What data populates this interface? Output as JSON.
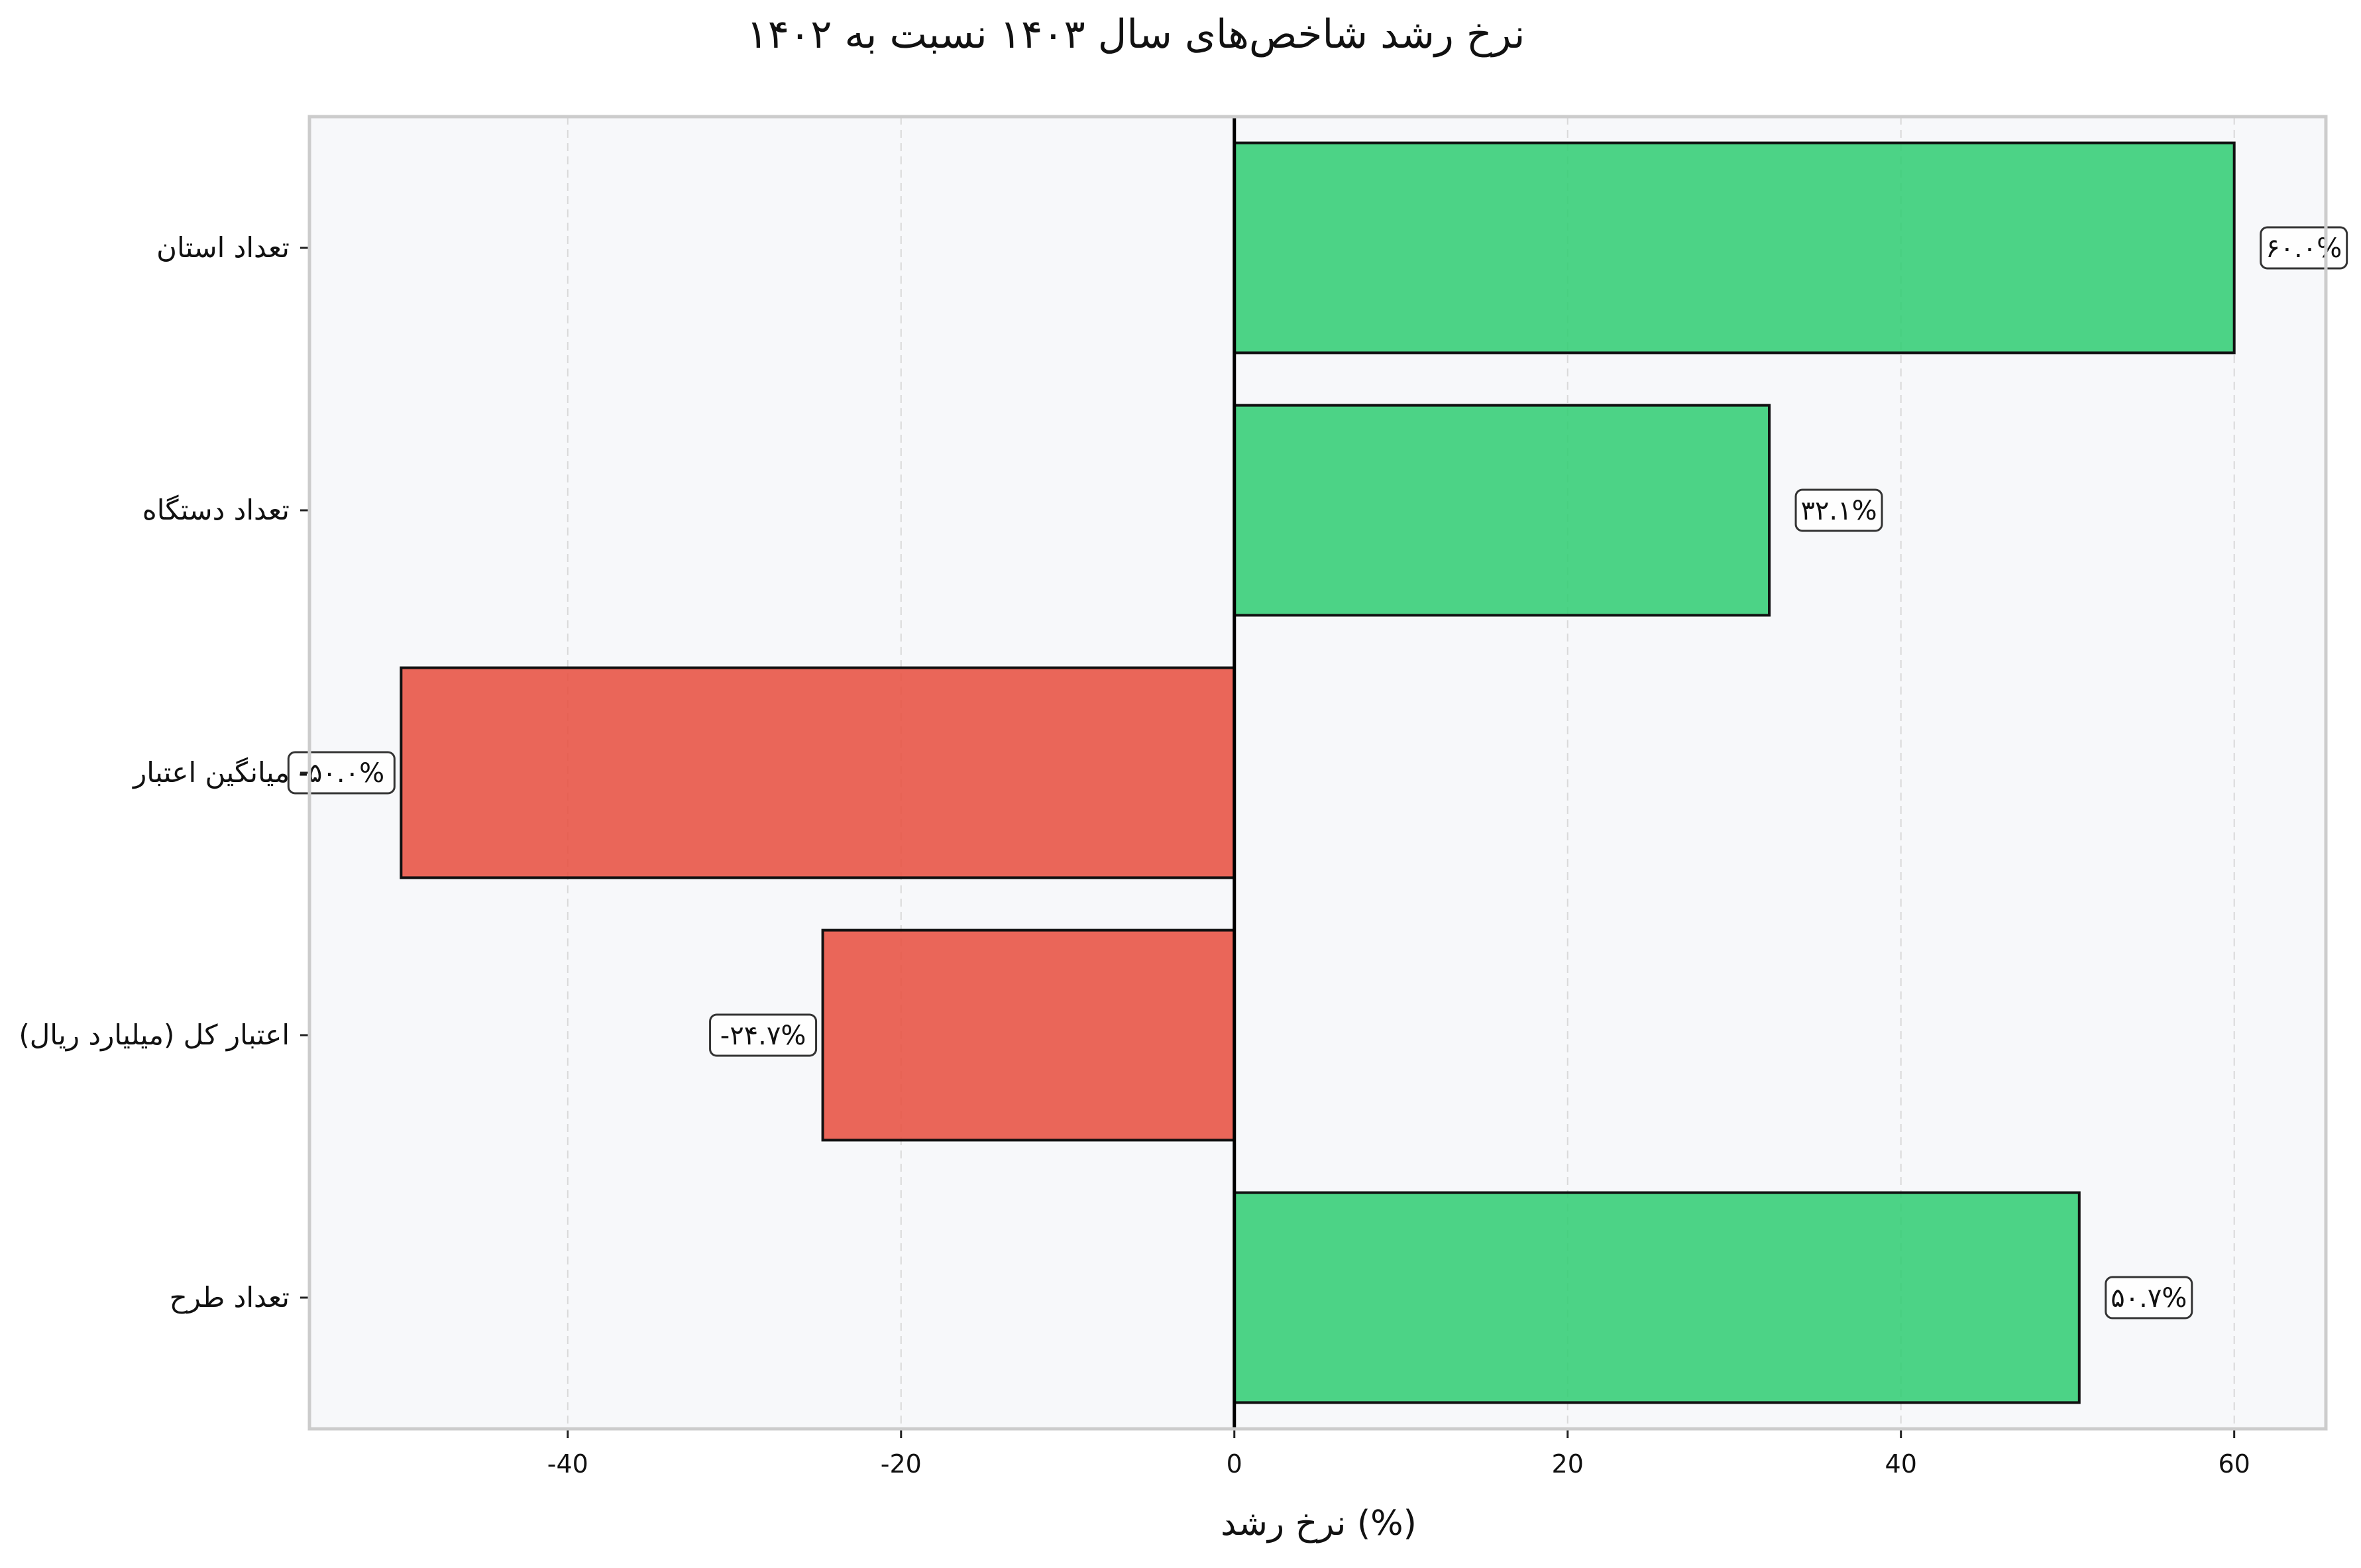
{
  "colors": {
    "positive": "#2ecc71",
    "negative": "#e74c3c",
    "plot_bg": "#f7f8fa",
    "frame": "#cccccc",
    "grid": "#d9d9d9",
    "zero_line": "#000000"
  },
  "chart_data": {
    "type": "bar",
    "orientation": "horizontal",
    "title": "نرخ رشد شاخص‌های سال ۱۴۰۳ نسبت به ۱۴۰۲",
    "xlabel": "نرخ رشد (%)",
    "ylabel": "",
    "xlim": [
      -55.5,
      65.5
    ],
    "xticks": [
      -40,
      -20,
      0,
      20,
      40,
      60
    ],
    "xtick_labels": [
      "-40",
      "-20",
      "0",
      "20",
      "40",
      "60"
    ],
    "grid": "x-dashed",
    "categories": [
      "تعداد استان",
      "تعداد دستگاه",
      "میانگین اعتبار",
      "اعتبار کل (میلیارد ریال)",
      "تعداد طرح"
    ],
    "values": [
      60.0,
      32.1,
      -50.0,
      -24.7,
      50.7
    ],
    "data_labels": [
      "۶۰.۰%",
      "۳۲.۱%",
      "-۵۰.۰%",
      "-۲۴.۷%",
      "۵۰.۷%"
    ]
  }
}
